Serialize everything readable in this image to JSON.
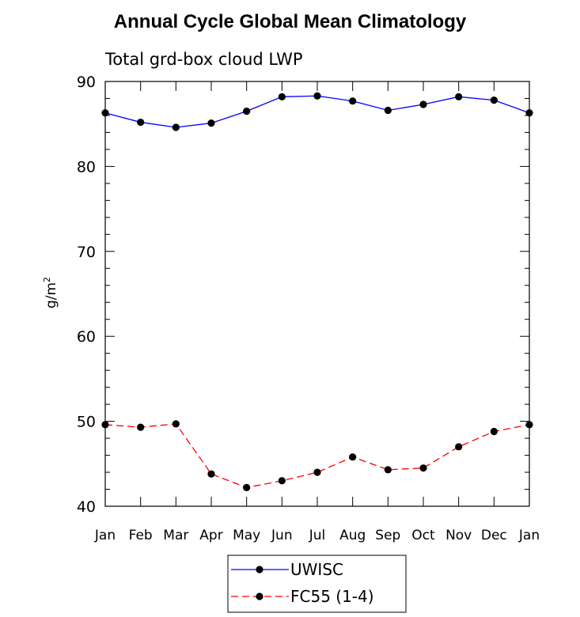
{
  "chart_data": {
    "type": "line",
    "title": "Annual Cycle Global Mean Climatology",
    "subtitle": "Total grd-box cloud LWP",
    "xlabel": "",
    "ylabel": "g/m",
    "ylabel_superscript": "2",
    "categories": [
      "Jan",
      "Feb",
      "Mar",
      "Apr",
      "May",
      "Jun",
      "Jul",
      "Aug",
      "Sep",
      "Oct",
      "Nov",
      "Dec",
      "Jan"
    ],
    "ylim": [
      40,
      90
    ],
    "yticks": [
      "40",
      "50",
      "60",
      "70",
      "80",
      "90"
    ],
    "series": [
      {
        "name": "UWISC",
        "color": "#0000ff",
        "dashed": false,
        "values": [
          86.3,
          85.2,
          84.6,
          85.1,
          86.5,
          88.2,
          88.3,
          87.7,
          86.6,
          87.3,
          88.2,
          87.8,
          86.3
        ]
      },
      {
        "name": "FC55 (1-4)",
        "color": "#ff0000",
        "dashed": true,
        "values": [
          49.6,
          49.3,
          49.7,
          43.8,
          42.2,
          43.0,
          44.0,
          45.8,
          44.3,
          44.5,
          47.0,
          48.8,
          49.6
        ]
      }
    ],
    "legend_position": "bottom-center",
    "grid": false
  }
}
